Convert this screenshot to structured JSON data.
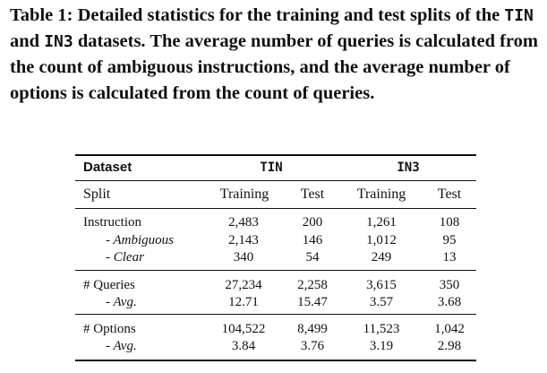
{
  "caption": {
    "part1": "Table 1: Detailed statistics for the training and test splits of the ",
    "tin": "TIN",
    "part2": " and ",
    "in3": "IN3",
    "part3": " datasets. The average number of queries is calculated from the count of ambiguous instructions, and the average number of options is calculated from the count of queries."
  },
  "table": {
    "header": {
      "dataset": "Dataset",
      "tin": "TIN",
      "in3": "IN3"
    },
    "split": {
      "label": "Split",
      "cols": [
        "Training",
        "Test",
        "Training",
        "Test"
      ]
    },
    "rows": [
      {
        "label": "Instruction",
        "values": [
          "2,483",
          "200",
          "1,261",
          "108"
        ]
      },
      {
        "label": "- Ambiguous",
        "values": [
          "2,143",
          "146",
          "1,012",
          "95"
        ]
      },
      {
        "label": "- Clear",
        "values": [
          "340",
          "54",
          "249",
          "13"
        ]
      },
      {
        "label": "# Queries",
        "values": [
          "27,234",
          "2,258",
          "3,615",
          "350"
        ]
      },
      {
        "label": "- Avg.",
        "values": [
          "12.71",
          "15.47",
          "3.57",
          "3.68"
        ]
      },
      {
        "label": "# Options",
        "values": [
          "104,522",
          "8,499",
          "11,523",
          "1,042"
        ]
      },
      {
        "label": "- Avg.",
        "values": [
          "3.84",
          "3.76",
          "3.19",
          "2.98"
        ]
      }
    ]
  }
}
